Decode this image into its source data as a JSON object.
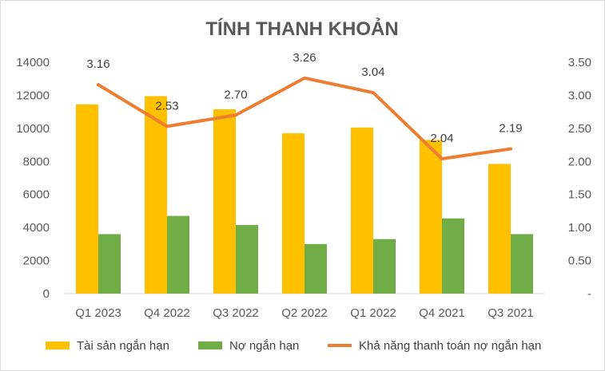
{
  "chart_data": {
    "type": "bar",
    "title": "TÍNH THANH KHOẢN",
    "categories": [
      "Q1 2023",
      "Q4 2022",
      "Q3 2022",
      "Q2 2022",
      "Q1 2022",
      "Q4 2021",
      "Q3 2021"
    ],
    "series": [
      {
        "name": "Tài sản ngắn hạn",
        "type": "bar",
        "axis": "left",
        "color": "#FFC000",
        "values": [
          11450,
          11950,
          11150,
          9700,
          10050,
          9300,
          7850
        ]
      },
      {
        "name": "Nợ ngắn hạn",
        "type": "bar",
        "axis": "left",
        "color": "#70AD47",
        "values": [
          3600,
          4700,
          4150,
          3000,
          3300,
          4550,
          3600
        ]
      },
      {
        "name": "Khả năng thanh toán nợ ngắn hạn",
        "type": "line",
        "axis": "right",
        "color": "#ED7D31",
        "values": [
          3.16,
          2.53,
          2.7,
          3.26,
          3.04,
          2.04,
          2.19
        ],
        "labels": [
          "3.16",
          "2.53",
          "2.70",
          "3.26",
          "3.04",
          "2.04",
          "2.19"
        ]
      }
    ],
    "y_left": {
      "min": 0,
      "max": 14000,
      "ticks": [
        "0",
        "2000",
        "4000",
        "6000",
        "8000",
        "10000",
        "12000",
        "14000"
      ]
    },
    "y_right": {
      "min": 0,
      "max": 3.5,
      "ticks": [
        "-",
        "0.50",
        "1.00",
        "1.50",
        "2.00",
        "2.50",
        "3.00",
        "3.50"
      ]
    },
    "grid": false,
    "legend_position": "bottom"
  }
}
